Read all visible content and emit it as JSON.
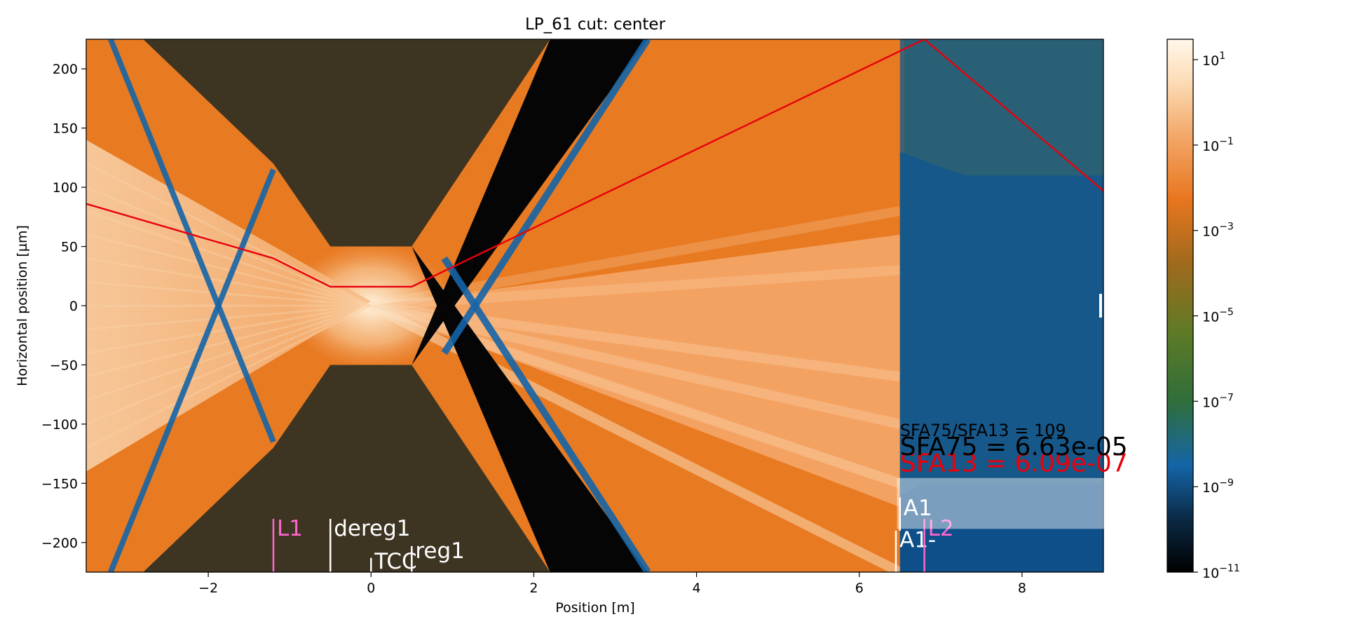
{
  "chart_data": {
    "type": "heatmap",
    "title": "LP_61 cut: center",
    "xlabel": "Position [m]",
    "ylabel": "Horizontal position [µm]",
    "xlim": [
      -3.5,
      9.0
    ],
    "ylim": [
      225,
      -225
    ],
    "x_ticks": [
      {
        "value": -2,
        "label": "−2"
      },
      {
        "value": 0,
        "label": "0"
      },
      {
        "value": 2,
        "label": "2"
      },
      {
        "value": 4,
        "label": "4"
      },
      {
        "value": 6,
        "label": "6"
      },
      {
        "value": 8,
        "label": "8"
      }
    ],
    "y_ticks": [
      {
        "value": -200,
        "label": "−200"
      },
      {
        "value": -150,
        "label": "−150"
      },
      {
        "value": -100,
        "label": "−100"
      },
      {
        "value": -50,
        "label": "−50"
      },
      {
        "value": 0,
        "label": "0"
      },
      {
        "value": 50,
        "label": "50"
      },
      {
        "value": 100,
        "label": "100"
      },
      {
        "value": 150,
        "label": "150"
      },
      {
        "value": 200,
        "label": "200"
      }
    ],
    "colorbar": {
      "scale": "log",
      "range": [
        1e-11,
        30
      ],
      "ticks": [
        {
          "value": 10,
          "base": "10",
          "exp": "1"
        },
        {
          "value": 0.1,
          "base": "10",
          "exp": "−1"
        },
        {
          "value": 0.001,
          "base": "10",
          "exp": "−3"
        },
        {
          "value": 1e-05,
          "base": "10",
          "exp": "−5"
        },
        {
          "value": 1e-07,
          "base": "10",
          "exp": "−7"
        },
        {
          "value": 1e-09,
          "base": "10",
          "exp": "−9"
        },
        {
          "value": 1e-11,
          "base": "10",
          "exp": "−11"
        }
      ],
      "colors": [
        "#000000",
        "#0d3a5c",
        "#1565a8",
        "#3c7a2e",
        "#6e7a22",
        "#b06a20",
        "#e87a20",
        "#f3a86a",
        "#fde7c8",
        "#fff8ea"
      ]
    },
    "aperture": {
      "upper_profile": [
        [
          -2.8,
          -225
        ],
        [
          -1.2,
          -120
        ],
        [
          -0.5,
          -50
        ],
        [
          0.5,
          -50
        ],
        [
          2.2,
          -225
        ]
      ],
      "lower_profile": [
        [
          -2.8,
          225
        ],
        [
          -1.2,
          120
        ],
        [
          -0.5,
          50
        ],
        [
          0.5,
          50
        ],
        [
          2.2,
          225
        ]
      ]
    },
    "trajectory": {
      "color": "#e8000b",
      "points": [
        [
          -3.5,
          86
        ],
        [
          -1.2,
          40
        ],
        [
          -0.5,
          16
        ],
        [
          0.5,
          16
        ],
        [
          6.8,
          225
        ],
        [
          9.0,
          97
        ]
      ]
    },
    "element_markers": [
      {
        "label": "L1",
        "x": -1.2,
        "y_top": -225,
        "y_bottom": -180,
        "label_y": -187,
        "color": "#ff66cc"
      },
      {
        "label": "dereg1",
        "x": -0.5,
        "y_top": -225,
        "y_bottom": -180,
        "label_y": -187,
        "color": "#ffffff"
      },
      {
        "label": "TCC",
        "x": 0.0,
        "y_top": -225,
        "y_bottom": -213,
        "label_y": -215,
        "color": "#ffffff"
      },
      {
        "label": "reg1",
        "x": 0.5,
        "y_top": -225,
        "y_bottom": -203,
        "label_y": -206,
        "color": "#ffffff"
      },
      {
        "label": "A1-",
        "x": 6.45,
        "y_top": -225,
        "y_bottom": -190,
        "label_y": -197,
        "color": "#ffffff"
      },
      {
        "label": "L2",
        "x": 6.8,
        "y_top": -225,
        "y_bottom": -180,
        "label_y": -187,
        "color": "#ff66cc"
      },
      {
        "label": "A1",
        "x": 6.5,
        "y_top": -190,
        "y_bottom": -162,
        "label_y": -170,
        "color": "#ffffff"
      }
    ],
    "annotations": [
      {
        "text": "SFA13 = 6.09e-07",
        "x": 6.5,
        "y": -140,
        "color": "#e8000b"
      },
      {
        "text": "SFA75 = 6.63e-05",
        "x": 6.5,
        "y": -126,
        "color": "#000000"
      },
      {
        "text": "SFA75/SFA13 = 109",
        "x": 6.5,
        "y": -110,
        "color": "#000000"
      }
    ]
  }
}
